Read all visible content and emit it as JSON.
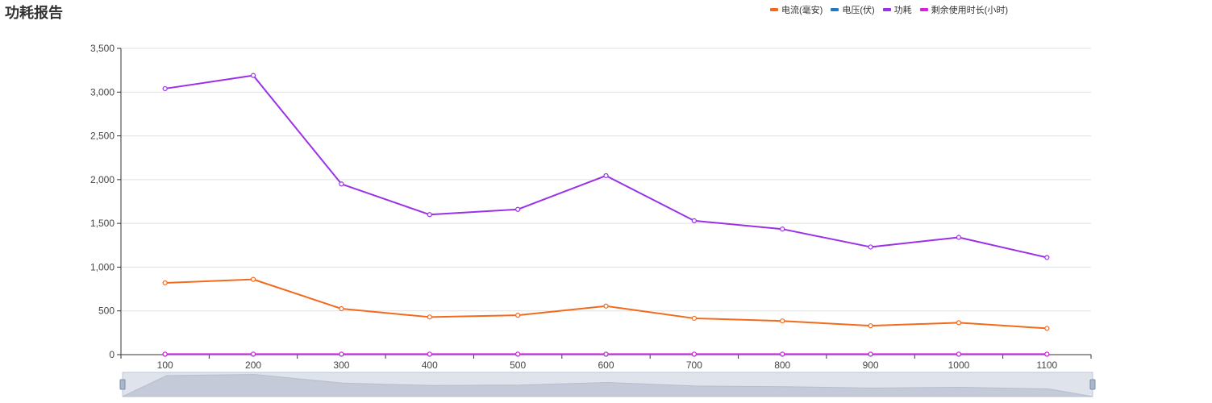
{
  "title": "功耗报告",
  "chart_data": {
    "type": "line",
    "x": [
      100,
      200,
      300,
      400,
      500,
      600,
      700,
      800,
      900,
      1000,
      1100
    ],
    "ylim": [
      0,
      3500
    ],
    "yticks": [
      "0",
      "500",
      "1,000",
      "1,500",
      "2,000",
      "2,500",
      "3,000",
      "3,500"
    ],
    "ytick_values": [
      0,
      500,
      1000,
      1500,
      2000,
      2500,
      3000,
      3500
    ],
    "xticks": [
      "100",
      "200",
      "300",
      "400",
      "500",
      "600",
      "700",
      "800",
      "900",
      "1000",
      "1100"
    ],
    "grid": true,
    "legend_position": "top-right",
    "series": [
      {
        "name": "电流(毫安)",
        "color": "#f26b1d",
        "values": [
          820,
          860,
          525,
          430,
          450,
          555,
          415,
          385,
          330,
          365,
          300
        ]
      },
      {
        "name": "电压(伏)",
        "color": "#1e78c8",
        "values": [
          4,
          4,
          4,
          4,
          4,
          4,
          4,
          4,
          4,
          4,
          4
        ]
      },
      {
        "name": "功耗",
        "color": "#9a31e8",
        "values": [
          3040,
          3190,
          1950,
          1600,
          1660,
          2045,
          1530,
          1435,
          1230,
          1340,
          1110
        ]
      },
      {
        "name": "剩余使用时长(小时)",
        "color": "#dd1ddd",
        "values": [
          6,
          6,
          6,
          6,
          6,
          6,
          6,
          6,
          6,
          6,
          6
        ]
      }
    ]
  }
}
